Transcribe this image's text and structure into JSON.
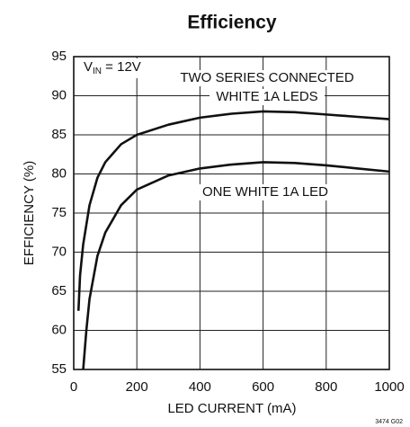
{
  "chart_data": {
    "type": "line",
    "title": "Efficiency",
    "xlabel": "LED CURRENT (mA)",
    "ylabel": "EFFICIENCY (%)",
    "xlim": [
      0,
      1000
    ],
    "xticks": [
      0,
      200,
      400,
      600,
      800,
      1000
    ],
    "ylim": [
      55,
      95
    ],
    "yticks": [
      55,
      60,
      65,
      70,
      75,
      80,
      85,
      90,
      95
    ],
    "grid": true,
    "series": [
      {
        "color": "#111111",
        "x": [
          15,
          20,
          30,
          50,
          75,
          100,
          150,
          200,
          300,
          400,
          500,
          600,
          700,
          800,
          900,
          1000
        ],
        "values": [
          62.5,
          67,
          71,
          76,
          79.5,
          81.5,
          83.8,
          85,
          86.3,
          87.2,
          87.7,
          88,
          87.9,
          87.6,
          87.3,
          87
        ]
      },
      {
        "color": "#111111",
        "x": [
          30,
          40,
          50,
          75,
          100,
          150,
          200,
          300,
          400,
          500,
          600,
          700,
          800,
          900,
          1000
        ],
        "values": [
          55,
          60,
          64,
          69.5,
          72.5,
          76,
          78,
          79.8,
          80.7,
          81.2,
          81.5,
          81.4,
          81.1,
          80.7,
          80.3
        ]
      }
    ],
    "annotations": {
      "vin": {
        "text": "V",
        "sub": "IN",
        "suffix": " = 12V"
      },
      "two_series": [
        "TWO SERIES CONNECTED",
        "WHITE 1A LEDS"
      ],
      "one_led": "ONE WHITE 1A LED",
      "figure_id": "3474 G02"
    }
  }
}
